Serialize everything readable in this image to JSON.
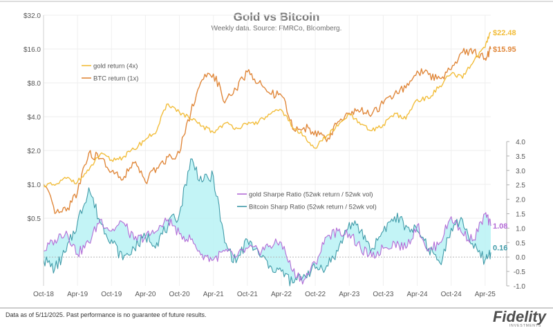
{
  "header": {
    "title": "Gold vs Bitcoin",
    "subtitle": "Weekly data.  Source: FMRCo, Bloomberg."
  },
  "footer": {
    "note": "Data as of 5/11/2025. Past performance is no guarantee of future results.",
    "logo": "Fidelity",
    "logo_sub": "INVESTMENTS"
  },
  "colors": {
    "gold": "#f2bd3a",
    "btc": "#e0873a",
    "gold_sharpe": "#b36ad6",
    "btc_sharpe": "#3f9aa8",
    "fill": "#b9f2f5"
  },
  "chart_data": [
    {
      "type": "line",
      "title": "Gold vs Bitcoin",
      "subtitle": "Weekly data.  Source: FMRCo, Bloomberg.",
      "scale": "log",
      "ylim": [
        0.5,
        32.0
      ],
      "yticks": [
        "$0.5",
        "$1.0",
        "$2.0",
        "$4.0",
        "$8.0",
        "$16.0",
        "$32.0"
      ],
      "ytick_values": [
        0.5,
        1,
        2,
        4,
        8,
        16,
        32
      ],
      "x": [
        "2018-10",
        "2018-12",
        "2019-02",
        "2019-04",
        "2019-06",
        "2019-08",
        "2019-10",
        "2019-12",
        "2020-02",
        "2020-04",
        "2020-06",
        "2020-08",
        "2020-10",
        "2020-12",
        "2021-02",
        "2021-04",
        "2021-06",
        "2021-08",
        "2021-10",
        "2021-12",
        "2022-02",
        "2022-04",
        "2022-06",
        "2022-08",
        "2022-10",
        "2022-12",
        "2023-02",
        "2023-04",
        "2023-06",
        "2023-08",
        "2023-10",
        "2023-12",
        "2024-02",
        "2024-04",
        "2024-06",
        "2024-08",
        "2024-10",
        "2024-12",
        "2025-02",
        "2025-04",
        "2025-05"
      ],
      "xtick_labels": [
        "Oct-18",
        "Apr-19",
        "Oct-19",
        "Apr-20",
        "Oct-20",
        "Apr-21",
        "Oct-21",
        "Apr-22",
        "Oct-22",
        "Apr-23",
        "Oct-23",
        "Apr-24",
        "Oct-24",
        "Apr-25"
      ],
      "legend_position": "upper-left",
      "series": [
        {
          "name": "gold return (4x)",
          "values": [
            1.0,
            0.98,
            1.13,
            1.05,
            1.33,
            1.85,
            1.65,
            1.74,
            2.05,
            2.5,
            3.0,
            5.2,
            4.4,
            3.8,
            3.3,
            2.9,
            3.5,
            3.2,
            3.4,
            3.6,
            4.2,
            4.6,
            3.2,
            2.7,
            2.1,
            2.7,
            3.3,
            4.2,
            3.4,
            3.0,
            3.4,
            4.3,
            3.8,
            5.7,
            5.8,
            7.5,
            9.6,
            8.8,
            12.5,
            16.5,
            22.48
          ],
          "end_label": "$22.48"
        },
        {
          "name": "BTC return (1x)",
          "values": [
            1.0,
            0.55,
            0.58,
            0.85,
            1.9,
            1.7,
            1.3,
            1.1,
            1.55,
            1.05,
            1.4,
            1.75,
            1.9,
            4.3,
            8.5,
            9.6,
            5.3,
            7.0,
            10.0,
            8.0,
            6.4,
            6.2,
            3.1,
            3.2,
            3.0,
            2.4,
            3.6,
            4.3,
            4.5,
            4.2,
            5.2,
            6.4,
            7.2,
            10.2,
            9.5,
            8.8,
            10.5,
            15.0,
            15.5,
            13.2,
            15.95
          ],
          "end_label": "$15.95"
        }
      ]
    },
    {
      "type": "line",
      "axis": "right",
      "ylim": [
        -1.0,
        4.0
      ],
      "yticks": [
        "-1.0",
        "-0.5",
        "0.0",
        "0.5",
        "1.0",
        "1.5",
        "2.0",
        "2.5",
        "3.0",
        "3.5",
        "4.0"
      ],
      "ytick_values": [
        -1.0,
        -0.5,
        0.0,
        0.5,
        1.0,
        1.5,
        2.0,
        2.5,
        3.0,
        3.5,
        4.0
      ],
      "x": [
        "2018-10",
        "2018-12",
        "2019-02",
        "2019-04",
        "2019-06",
        "2019-08",
        "2019-10",
        "2019-12",
        "2020-02",
        "2020-04",
        "2020-06",
        "2020-08",
        "2020-10",
        "2020-12",
        "2021-02",
        "2021-04",
        "2021-06",
        "2021-08",
        "2021-10",
        "2021-12",
        "2022-02",
        "2022-04",
        "2022-06",
        "2022-08",
        "2022-10",
        "2022-12",
        "2023-02",
        "2023-04",
        "2023-06",
        "2023-08",
        "2023-10",
        "2023-12",
        "2024-02",
        "2024-04",
        "2024-06",
        "2024-08",
        "2024-10",
        "2024-12",
        "2025-02",
        "2025-04",
        "2025-05"
      ],
      "legend_position": "center",
      "series": [
        {
          "name": "gold Sharpe Ratio (52wk return / 52wk vol)",
          "values": [
            0.2,
            0.6,
            0.9,
            0.1,
            0.5,
            1.3,
            0.9,
            1.2,
            0.6,
            0.7,
            0.9,
            1.3,
            0.8,
            0.6,
            0.1,
            -0.1,
            0.2,
            0.0,
            0.3,
            0.2,
            0.4,
            0.5,
            -0.5,
            -0.8,
            -0.2,
            0.7,
            0.9,
            0.8,
            0.3,
            0.0,
            0.3,
            0.5,
            0.3,
            1.1,
            0.2,
            0.5,
            1.4,
            0.8,
            0.6,
            1.5,
            1.08
          ],
          "end_label": "1.08"
        },
        {
          "name": "Bitcoin Sharp Ratio (52wk return / 52wk vol)",
          "values": [
            -0.1,
            -0.4,
            0.2,
            1.2,
            2.4,
            1.2,
            0.6,
            -0.1,
            0.3,
            0.7,
            0.5,
            1.1,
            1.5,
            3.4,
            2.6,
            2.8,
            0.5,
            -0.2,
            0.6,
            0.1,
            -0.3,
            -0.5,
            -0.9,
            -0.6,
            -0.4,
            -0.3,
            0.2,
            1.2,
            0.9,
            0.3,
            0.9,
            1.4,
            1.1,
            0.9,
            0.3,
            -0.2,
            1.0,
            1.3,
            0.3,
            -0.1,
            0.16
          ],
          "end_label": "0.16"
        }
      ]
    }
  ]
}
